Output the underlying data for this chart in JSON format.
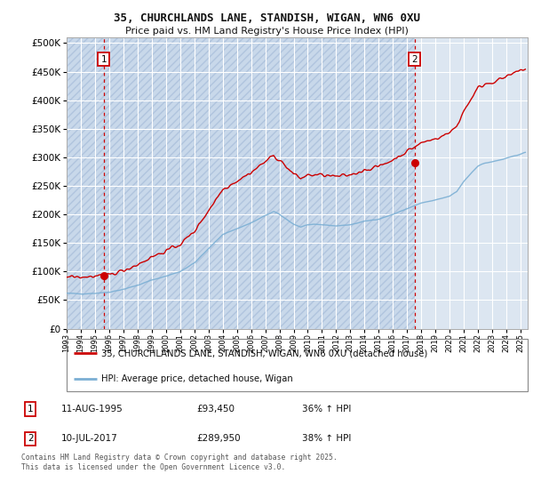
{
  "title_line1": "35, CHURCHLANDS LANE, STANDISH, WIGAN, WN6 0XU",
  "title_line2": "Price paid vs. HM Land Registry's House Price Index (HPI)",
  "ytick_values": [
    0,
    50000,
    100000,
    150000,
    200000,
    250000,
    300000,
    350000,
    400000,
    450000,
    500000
  ],
  "ylim": [
    0,
    510000
  ],
  "xlim_start": 1993.0,
  "xlim_end": 2025.5,
  "bg_color": "#dce6f1",
  "grid_color": "#ffffff",
  "red_line_color": "#cc0000",
  "blue_line_color": "#7bafd4",
  "dashed_line_color": "#cc0000",
  "annotation_box_color": "#cc0000",
  "point1_x": 1995.61,
  "point1_y": 93450,
  "point2_x": 2017.53,
  "point2_y": 289950,
  "legend_line1": "35, CHURCHLANDS LANE, STANDISH, WIGAN, WN6 0XU (detached house)",
  "legend_line2": "HPI: Average price, detached house, Wigan",
  "point1_date": "11-AUG-1995",
  "point1_price": "£93,450",
  "point1_hpi": "36% ↑ HPI",
  "point2_date": "10-JUL-2017",
  "point2_price": "£289,950",
  "point2_hpi": "38% ↑ HPI",
  "footnote": "Contains HM Land Registry data © Crown copyright and database right 2025.\nThis data is licensed under the Open Government Licence v3.0."
}
